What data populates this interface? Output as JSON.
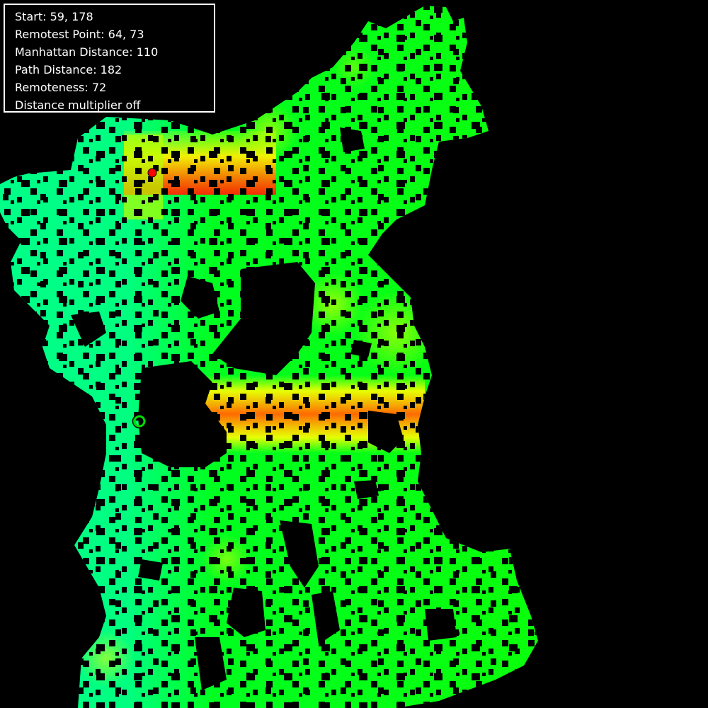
{
  "info": {
    "start": "Start: 59, 178",
    "remotest_point": "Remotest Point: 64, 73",
    "manhattan_distance": "Manhattan Distance: 110",
    "path_distance": "Path Distance: 182",
    "remoteness": "Remoteness: 72",
    "multiplier": "Distance multiplier off"
  },
  "markers": {
    "start": {
      "grid": [
        59,
        178
      ],
      "color": "#00dd00"
    },
    "remotest": {
      "grid": [
        64,
        73
      ],
      "color": "#ff0000"
    }
  },
  "colors": {
    "background": "#000000",
    "panel_border": "#ffffff",
    "near": "#00ff7a",
    "mid": "#00ff00",
    "far_yellow": "#ffff00",
    "far_orange": "#ff8000",
    "far_red": "#ff2000"
  }
}
